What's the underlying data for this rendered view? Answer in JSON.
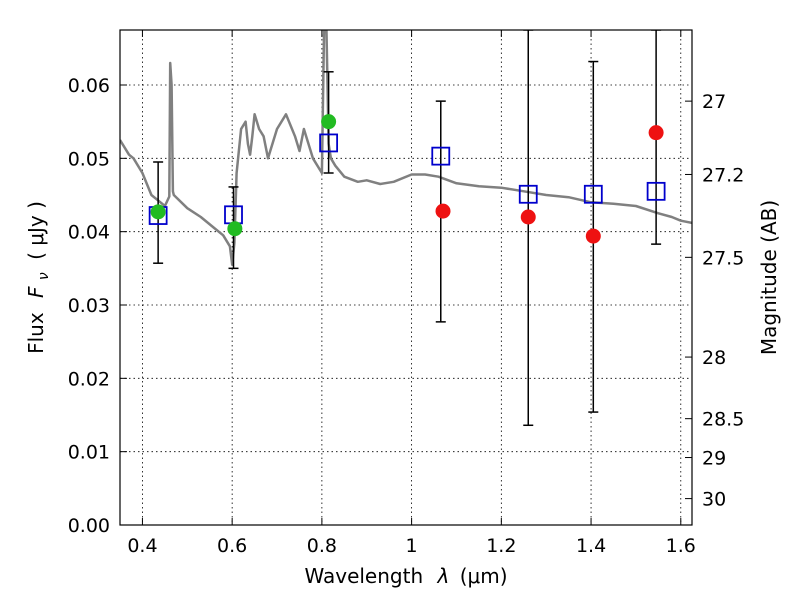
{
  "chart_data": {
    "type": "scatter",
    "xlabel_text": "Wavelength",
    "xlabel_symbol": "λ",
    "xlabel_unit": "(μm)",
    "ylabel_text": "Flux",
    "ylabel_symbol": "F",
    "ylabel_subscript": "ν",
    "ylabel_unit": "( μJy )",
    "y2label": "Magnitude (AB)",
    "xlim": [
      0.35,
      1.625
    ],
    "ylim": [
      0.0,
      0.0675
    ],
    "grid": true,
    "x_ticks": [
      0.4,
      0.6,
      0.8,
      1.0,
      1.2,
      1.4,
      1.6
    ],
    "x_tick_labels": [
      "0.4",
      "0.6",
      "0.8",
      "1",
      "1.2",
      "1.4",
      "1.6"
    ],
    "y_ticks": [
      0.0,
      0.01,
      0.02,
      0.03,
      0.04,
      0.05,
      0.06
    ],
    "y_tick_labels": [
      "0.00",
      "0.01",
      "0.02",
      "0.03",
      "0.04",
      "0.05",
      "0.06"
    ],
    "y2_ticks": [
      {
        "label": "27",
        "flux": 0.0578
      },
      {
        "label": "27.2",
        "flux": 0.0478
      },
      {
        "label": "27.5",
        "flux": 0.0365
      },
      {
        "label": "28",
        "flux": 0.0229
      },
      {
        "label": "28.5",
        "flux": 0.0145
      },
      {
        "label": "29",
        "flux": 0.0092
      },
      {
        "label": "30",
        "flux": 0.0036
      }
    ],
    "series": [
      {
        "kind": "spectrum",
        "color": "#808080",
        "x": [
          0.35,
          0.37,
          0.38,
          0.4,
          0.42,
          0.44,
          0.45,
          0.46,
          0.462,
          0.465,
          0.468,
          0.47,
          0.5,
          0.53,
          0.56,
          0.58,
          0.595,
          0.6,
          0.605,
          0.61,
          0.62,
          0.63,
          0.635,
          0.64,
          0.645,
          0.65,
          0.66,
          0.67,
          0.68,
          0.7,
          0.72,
          0.74,
          0.75,
          0.76,
          0.78,
          0.8,
          0.805,
          0.81,
          0.815,
          0.82,
          0.83,
          0.85,
          0.88,
          0.9,
          0.93,
          0.96,
          1.0,
          1.03,
          1.06,
          1.1,
          1.15,
          1.2,
          1.25,
          1.3,
          1.35,
          1.4,
          1.45,
          1.5,
          1.55,
          1.58,
          1.6,
          1.625
        ],
        "y": [
          0.0525,
          0.0505,
          0.05,
          0.048,
          0.045,
          0.044,
          0.0435,
          0.0448,
          0.063,
          0.06,
          0.0455,
          0.045,
          0.0432,
          0.042,
          0.0405,
          0.0395,
          0.038,
          0.0355,
          0.0385,
          0.048,
          0.054,
          0.055,
          0.052,
          0.0505,
          0.053,
          0.056,
          0.054,
          0.053,
          0.05,
          0.054,
          0.056,
          0.053,
          0.051,
          0.054,
          0.05,
          0.048,
          0.068,
          0.068,
          0.052,
          0.05,
          0.049,
          0.0475,
          0.0468,
          0.047,
          0.0465,
          0.0468,
          0.0478,
          0.0478,
          0.0475,
          0.0466,
          0.0462,
          0.046,
          0.0455,
          0.045,
          0.0447,
          0.044,
          0.0438,
          0.0435,
          0.0425,
          0.042,
          0.0415,
          0.0412
        ]
      },
      {
        "kind": "model",
        "color": "#0000cc",
        "x": [
          0.435,
          0.603,
          0.815,
          1.065,
          1.26,
          1.405,
          1.545
        ],
        "y": [
          0.0422,
          0.0423,
          0.0521,
          0.0503,
          0.0451,
          0.0451,
          0.0455
        ]
      },
      {
        "kind": "detection",
        "color": "#22bb22",
        "x": [
          0.435,
          0.606,
          0.815
        ],
        "y": [
          0.0427,
          0.0404,
          0.055
        ]
      },
      {
        "kind": "detection",
        "color": "#ee1111",
        "x": [
          1.07,
          1.26,
          1.405,
          1.545
        ],
        "y": [
          0.0428,
          0.042,
          0.0394,
          0.0535
        ]
      },
      {
        "kind": "errorbar",
        "color": "#000000",
        "x": [
          0.435,
          0.603,
          0.815,
          1.065,
          1.26,
          1.405,
          1.545
        ],
        "low": [
          0.0357,
          0.035,
          0.048,
          0.0277,
          0.0136,
          0.0154,
          0.0383
        ],
        "high": [
          0.0495,
          0.0461,
          0.0618,
          0.0578,
          0.0675,
          0.0632,
          0.0675
        ]
      }
    ]
  }
}
